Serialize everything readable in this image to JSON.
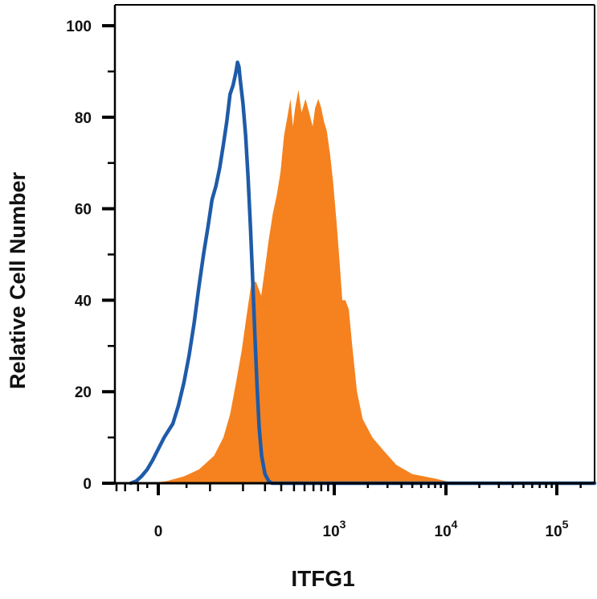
{
  "chart_data": {
    "type": "area",
    "xlabel": "ITFG1",
    "ylabel": "Relative Cell Number",
    "x_scale": "biexponential",
    "ylim": [
      0,
      100
    ],
    "yticks": [
      0,
      20,
      40,
      60,
      80,
      100
    ],
    "xticks": [
      {
        "value": 0,
        "base": "0",
        "exp": ""
      },
      {
        "value": 1000,
        "base": "10",
        "exp": "3"
      },
      {
        "value": 10000,
        "base": "10",
        "exp": "4"
      },
      {
        "value": 100000,
        "base": "10",
        "exp": "5"
      }
    ],
    "grid": false,
    "colors": {
      "filled": "#F5821F",
      "outline": "#1F5BA8",
      "axis": "#000000"
    },
    "series": [
      {
        "style": "filled",
        "color": "#F5821F",
        "points": [
          [
            -30,
            0
          ],
          [
            15,
            0.5
          ],
          [
            45,
            1.5
          ],
          [
            75,
            3
          ],
          [
            110,
            6
          ],
          [
            135,
            10
          ],
          [
            155,
            15
          ],
          [
            175,
            22
          ],
          [
            195,
            29
          ],
          [
            215,
            37
          ],
          [
            235,
            44
          ],
          [
            255,
            44
          ],
          [
            280,
            41
          ],
          [
            300,
            47
          ],
          [
            320,
            53
          ],
          [
            345,
            59
          ],
          [
            370,
            63
          ],
          [
            395,
            68
          ],
          [
            420,
            76
          ],
          [
            445,
            80
          ],
          [
            470,
            84
          ],
          [
            490,
            78
          ],
          [
            510,
            82
          ],
          [
            540,
            86
          ],
          [
            570,
            81
          ],
          [
            610,
            84
          ],
          [
            650,
            81
          ],
          [
            690,
            78
          ],
          [
            720,
            82
          ],
          [
            760,
            84
          ],
          [
            800,
            82
          ],
          [
            840,
            79
          ],
          [
            880,
            77
          ],
          [
            930,
            72
          ],
          [
            980,
            66
          ],
          [
            1050,
            57
          ],
          [
            1120,
            48
          ],
          [
            1180,
            40
          ],
          [
            1260,
            40
          ],
          [
            1350,
            38
          ],
          [
            1450,
            30
          ],
          [
            1600,
            20
          ],
          [
            1800,
            14
          ],
          [
            2200,
            10
          ],
          [
            2800,
            7
          ],
          [
            3600,
            4
          ],
          [
            5000,
            2
          ],
          [
            8000,
            1
          ],
          [
            12000,
            0
          ]
        ]
      },
      {
        "style": "outline",
        "color": "#1F5BA8",
        "points": [
          [
            -150,
            0
          ],
          [
            -110,
            0.5
          ],
          [
            -80,
            1.5
          ],
          [
            -50,
            3
          ],
          [
            -25,
            5
          ],
          [
            -5,
            7
          ],
          [
            10,
            10
          ],
          [
            25,
            13
          ],
          [
            35,
            17
          ],
          [
            45,
            22
          ],
          [
            55,
            28
          ],
          [
            65,
            35
          ],
          [
            75,
            43
          ],
          [
            85,
            50
          ],
          [
            95,
            56
          ],
          [
            105,
            62
          ],
          [
            115,
            65
          ],
          [
            125,
            69
          ],
          [
            135,
            74
          ],
          [
            145,
            79
          ],
          [
            155,
            85
          ],
          [
            165,
            87
          ],
          [
            175,
            90
          ],
          [
            180,
            92
          ],
          [
            185,
            91
          ],
          [
            190,
            88
          ],
          [
            200,
            83
          ],
          [
            210,
            76
          ],
          [
            220,
            67
          ],
          [
            230,
            56
          ],
          [
            240,
            44
          ],
          [
            250,
            32
          ],
          [
            260,
            21
          ],
          [
            270,
            12
          ],
          [
            282,
            6
          ],
          [
            300,
            2
          ],
          [
            320,
            0.5
          ],
          [
            340,
            0
          ]
        ]
      }
    ]
  }
}
